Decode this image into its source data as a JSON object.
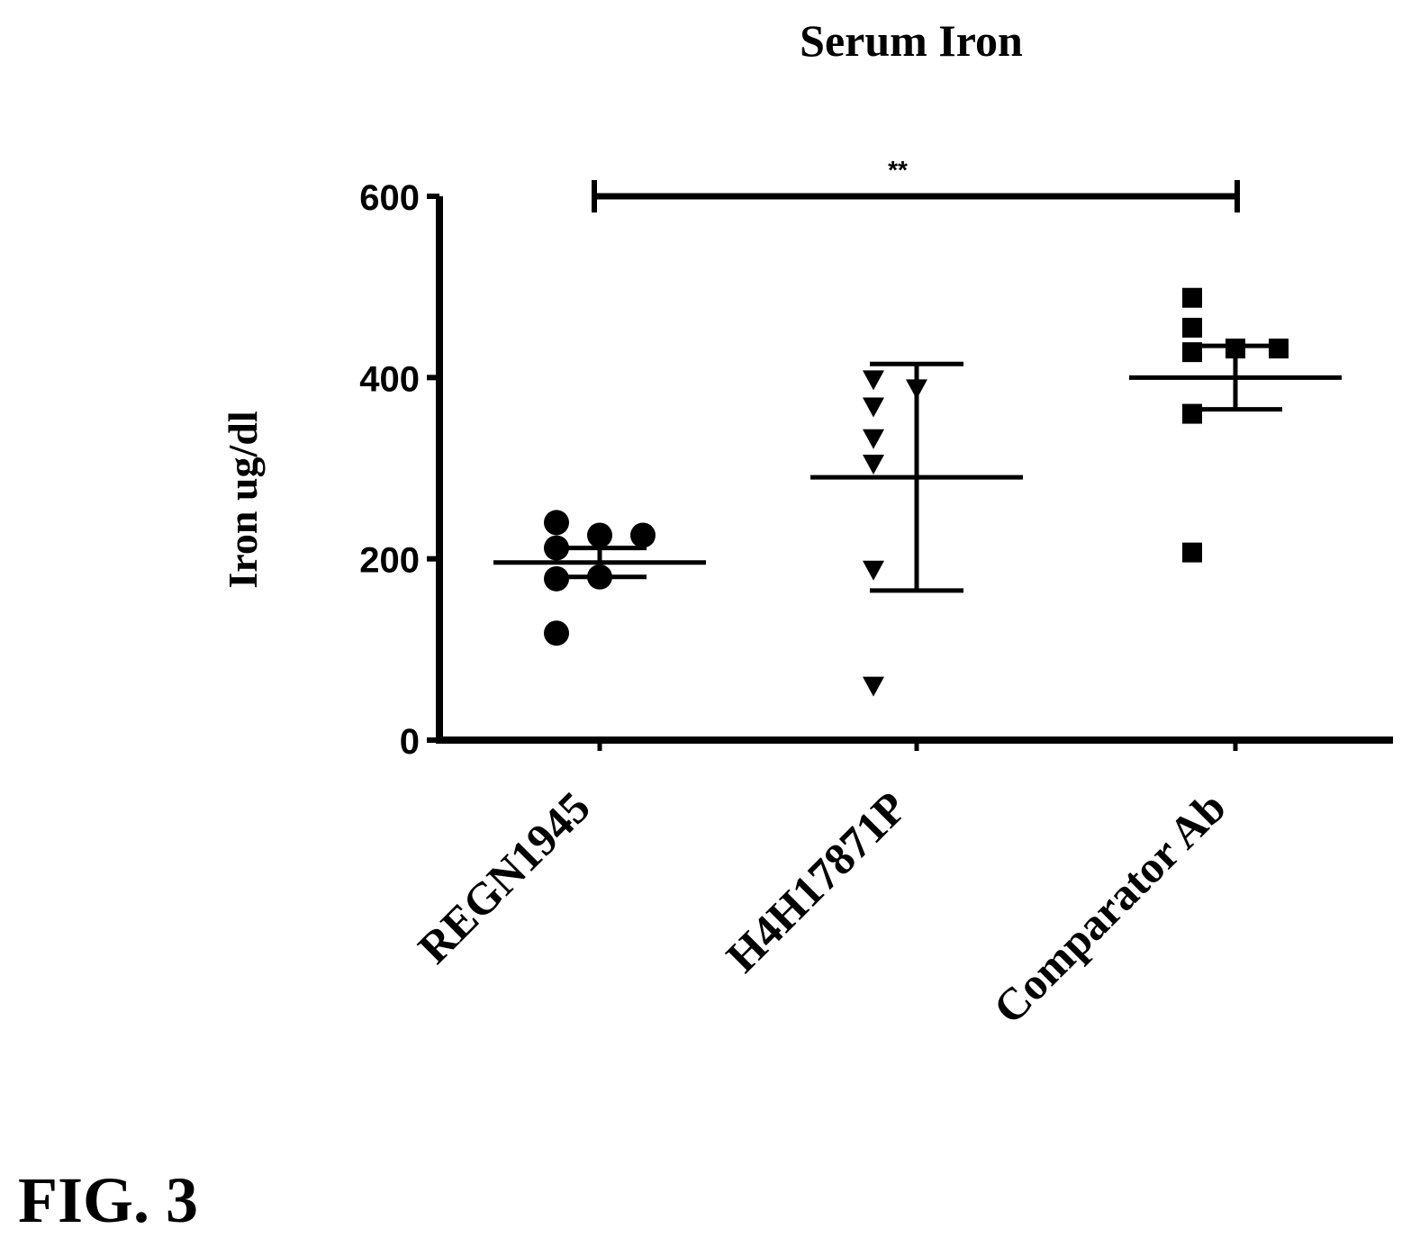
{
  "figure_label": "FIG. 3",
  "chart_data": {
    "type": "scatter",
    "title": "Serum Iron",
    "xlabel": "",
    "ylabel": "Iron ug/dl",
    "ylim": [
      0,
      600
    ],
    "yticks": [
      0,
      200,
      400,
      600
    ],
    "ytick_labels": [
      "0",
      "200",
      "400",
      "600"
    ],
    "categories": [
      "REGN1945",
      "H4H17871P",
      "Comparator Ab"
    ],
    "grid": false,
    "legend": "none",
    "series": [
      {
        "category": "REGN1945",
        "marker": "circle",
        "values": [
          118,
          178,
          180,
          212,
          226,
          226,
          240
        ],
        "mean": 196,
        "error_low": 180,
        "error_high": 212
      },
      {
        "category": "H4H17871P",
        "marker": "triangle-down",
        "values": [
          60,
          188,
          305,
          333,
          368,
          388,
          398
        ],
        "mean": 290,
        "error_low": 165,
        "error_high": 415
      },
      {
        "category": "Comparator Ab",
        "marker": "square",
        "values": [
          207,
          360,
          428,
          432,
          432,
          455,
          488
        ],
        "mean": 400,
        "error_low": 365,
        "error_high": 435
      }
    ],
    "significance": {
      "label": "**",
      "from": "REGN1945",
      "to": "Comparator Ab",
      "y": 600
    }
  }
}
